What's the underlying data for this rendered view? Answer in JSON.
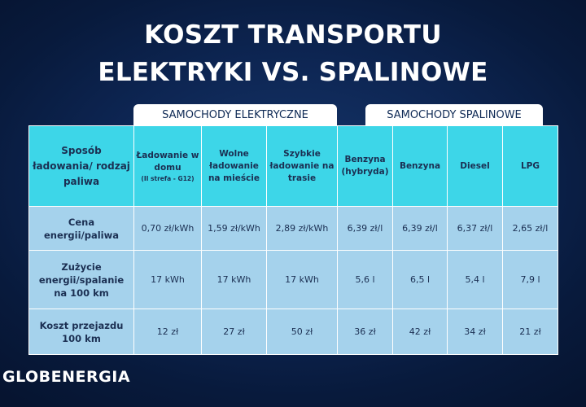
{
  "title": {
    "line1": "KOSZT TRANSPORTU",
    "line2": "ELEKTRYKI VS. SPALINOWE"
  },
  "groups": {
    "electric": "SAMOCHODY ELEKTRYCZNE",
    "combustion": "SAMOCHODY SPALINOWE"
  },
  "table": {
    "corner": "Sposób ładowania/ rodzaj paliwa",
    "columns": [
      {
        "label": "Ładowanie w domu",
        "note": "(II strefa - G12)"
      },
      {
        "label": "Wolne ładowanie na mieście",
        "note": ""
      },
      {
        "label": "Szybkie ładowanie na trasie",
        "note": ""
      },
      {
        "label": "Benzyna (hybryda)",
        "note": ""
      },
      {
        "label": "Benzyna",
        "note": ""
      },
      {
        "label": "Diesel",
        "note": ""
      },
      {
        "label": "LPG",
        "note": ""
      }
    ],
    "rows": [
      {
        "label": "Cena energii/paliwa",
        "cells": [
          "0,70 zł/kWh",
          "1,59 zł/kWh",
          "2,89 zł/kWh",
          "6,39 zł/l",
          "6,39 zł/l",
          "6,37 zł/l",
          "2,65 zł/l"
        ]
      },
      {
        "label": "Zużycie energii/spalanie na 100 km",
        "cells": [
          "17 kWh",
          "17 kWh",
          "17 kWh",
          "5,6 l",
          "6,5 l",
          "5,4 l",
          "7,9 l"
        ]
      },
      {
        "label": "Koszt przejazdu 100 km",
        "cells": [
          "12 zł",
          "27 zł",
          "50 zł",
          "36 zł",
          "42 zł",
          "34 zł",
          "21 zł"
        ]
      }
    ]
  },
  "logo": "GLOBENERGIA",
  "colors": {
    "header_cyan": "#3dd6e8",
    "cell_blue": "#a5d2ec",
    "background_navy": "#0d2552"
  }
}
